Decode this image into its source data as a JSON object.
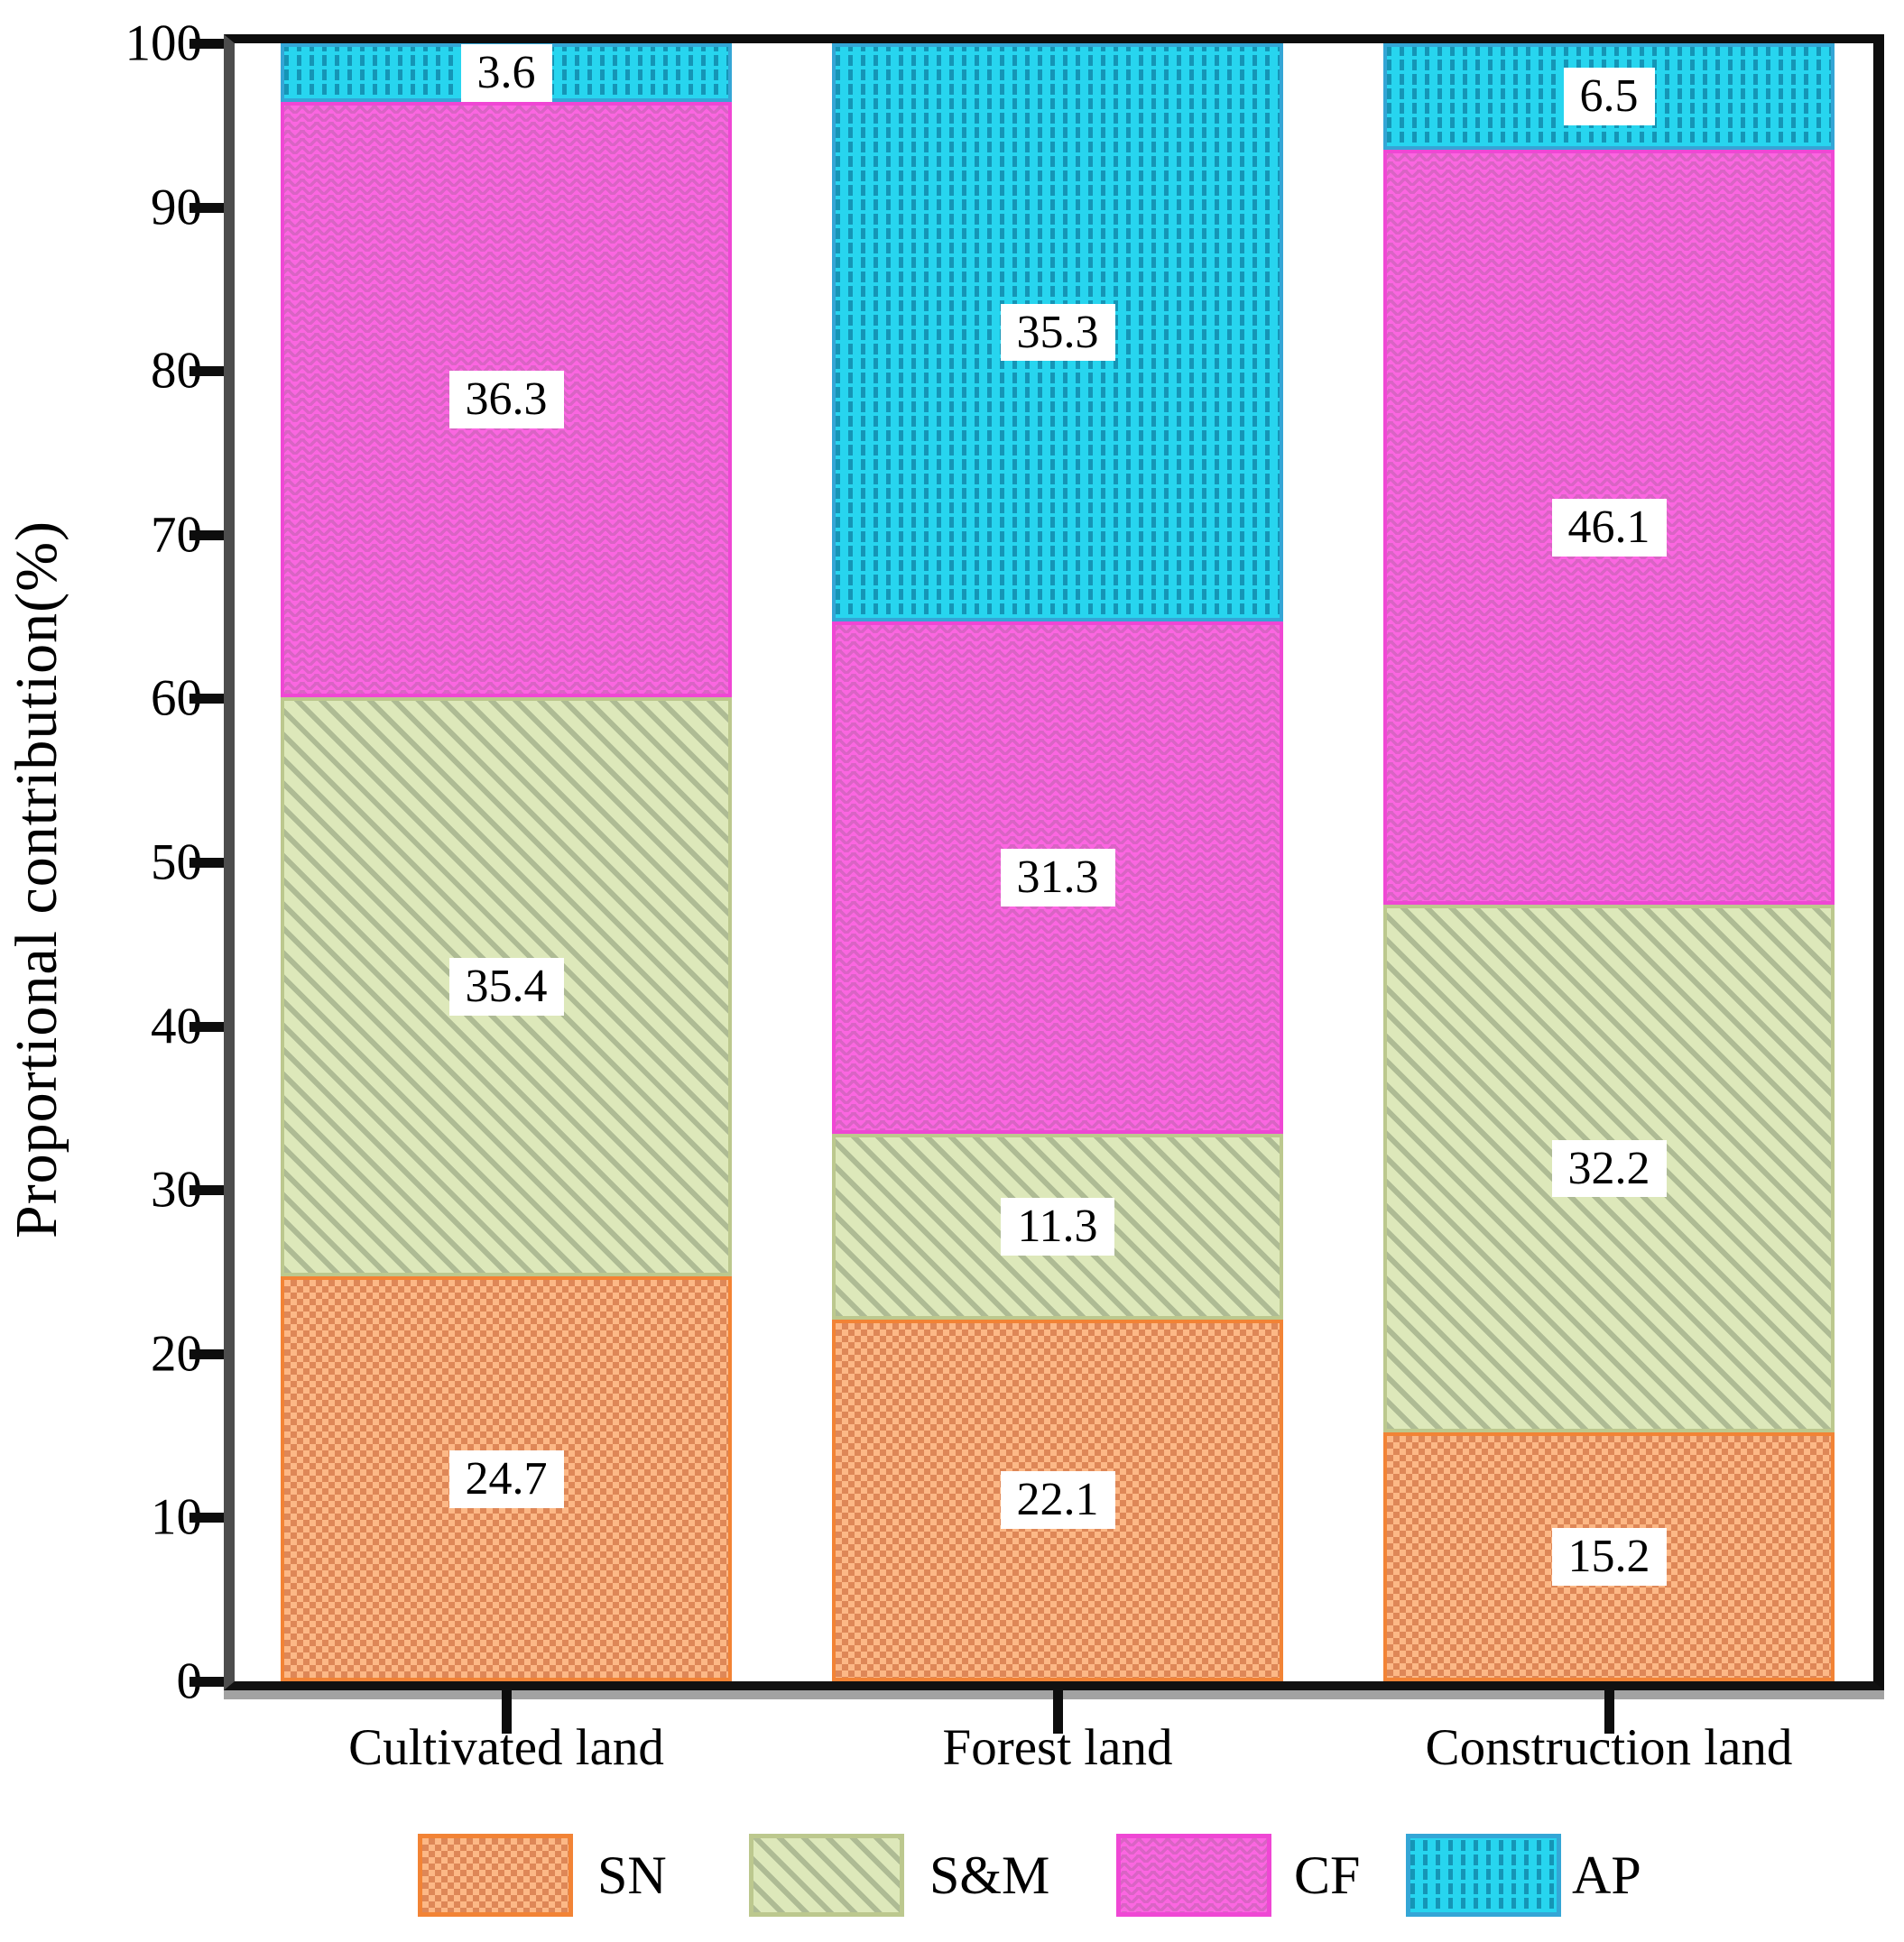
{
  "chart_data": {
    "type": "bar",
    "variant": "stacked",
    "title": "",
    "xlabel": "",
    "ylabel": "Proportional contribution(%)",
    "ylim": [
      0,
      100
    ],
    "y_ticks": [
      0,
      10,
      20,
      30,
      40,
      50,
      60,
      70,
      80,
      90,
      100
    ],
    "grid": false,
    "legend_position": "bottom",
    "value_labels_shown": true,
    "categories": [
      "Cultivated land",
      "Forest land",
      "Construction land"
    ],
    "series": [
      {
        "name": "SN",
        "key": "sn",
        "values": [
          24.7,
          22.1,
          15.2
        ],
        "fill": "#fcb886",
        "pattern": "checker",
        "pattern_color": "#de8757",
        "edge": "#f28335"
      },
      {
        "name": "S&M",
        "key": "sm",
        "values": [
          35.4,
          11.3,
          32.2
        ],
        "fill": "#dde8ba",
        "pattern": "diagonal-hatch",
        "pattern_color": "#aebb94",
        "edge": "#bcc88e"
      },
      {
        "name": "CF",
        "key": "cf",
        "values": [
          36.3,
          31.3,
          46.1
        ],
        "fill": "#fb66e1",
        "pattern": "horizontal-waves",
        "pattern_color": "#d964c4",
        "edge": "#ef47d4"
      },
      {
        "name": "AP",
        "key": "ap",
        "values": [
          3.6,
          35.3,
          6.5
        ],
        "fill": "#27d5ef",
        "pattern": "vertical-dashes",
        "pattern_color": "#1595b6",
        "edge": "#34a6d6"
      }
    ],
    "totals": [
      100.0,
      100.0,
      100.0
    ]
  },
  "colors": {
    "axis": "#0d0d0d",
    "left_axis": "#4d4d4d",
    "axis_shadow": "#a2a2a2",
    "background": "#ffffff",
    "text": "#000000",
    "value_label_bg": "#ffffff"
  }
}
